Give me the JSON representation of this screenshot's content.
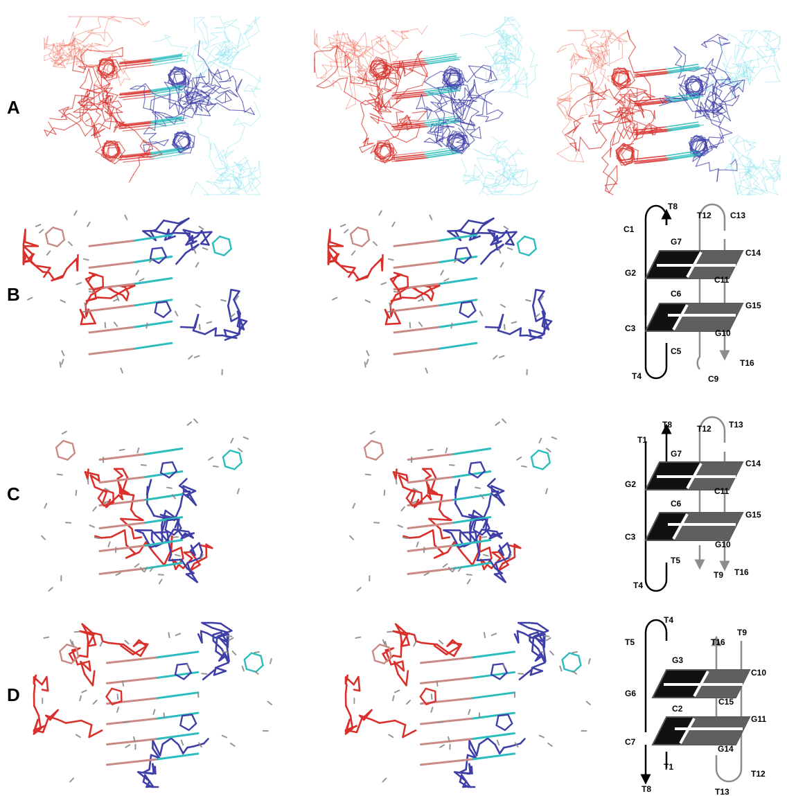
{
  "rows": [
    {
      "label": "A"
    },
    {
      "label": "B"
    },
    {
      "label": "C"
    },
    {
      "label": "D"
    }
  ],
  "colors": {
    "strand_red": "#d9302b",
    "strand_red_light": "#f07b6a",
    "strand_salmon": "#c98a86",
    "strand_blue": "#3f3fa8",
    "strand_blue_light": "#7f84d6",
    "base_cyan": "#2bbdbd",
    "base_cyan_light": "#8fe3ef",
    "hydrogen_grey": "#8a8a8a",
    "tetrad_black": "#111111",
    "tetrad_grey": "#5f5f5f",
    "loop_grey": "#8c8c8c"
  },
  "topology": {
    "B": {
      "labels": {
        "t8": "T8",
        "c1": "C1",
        "g7": "G7",
        "t12": "T12",
        "c13": "C13",
        "g2": "G2",
        "c14": "C14",
        "c11": "C11",
        "c6": "C6",
        "g15": "G15",
        "c3": "C3",
        "g10": "G10",
        "c5": "C5",
        "t16": "T16",
        "t4": "T4",
        "c9": "C9"
      }
    },
    "C": {
      "labels": {
        "t8": "T8",
        "t1": "T1",
        "t12": "T12",
        "t13": "T13",
        "g7": "G7",
        "g2": "G2",
        "c14": "C14",
        "c11": "C11",
        "c6": "C6",
        "g15": "G15",
        "c3": "C3",
        "g10": "G10",
        "t5": "T5",
        "t9": "T9",
        "t16": "T16",
        "t4": "T4"
      }
    },
    "D": {
      "labels": {
        "t4": "T4",
        "t5": "T5",
        "t16": "T16",
        "t9": "T9",
        "g3": "G3",
        "c10": "C10",
        "g6": "G6",
        "c15": "C15",
        "c2": "C2",
        "g11": "G11",
        "c7": "C7",
        "g14": "G14",
        "t1": "T1",
        "t12": "T12",
        "t8": "T8",
        "t13": "T13"
      }
    }
  }
}
